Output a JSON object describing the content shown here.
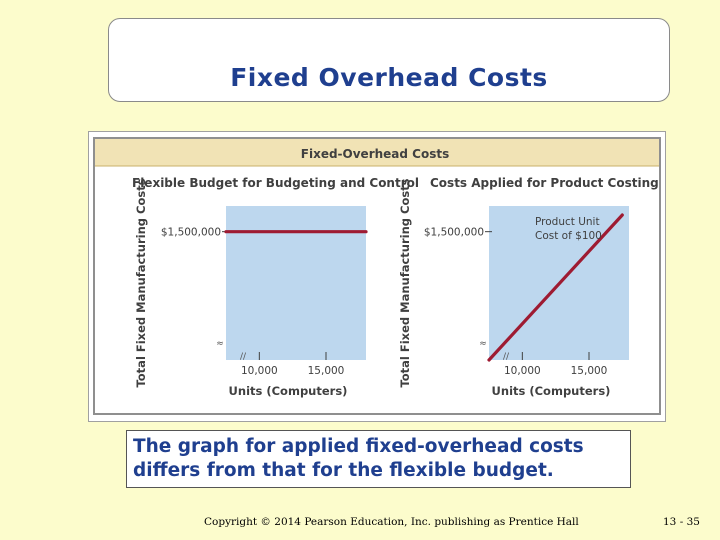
{
  "slide": {
    "title": "Fixed Overhead Costs",
    "caption_line1": "The graph for applied fixed-overhead costs",
    "caption_line2": "differs from that for the flexible budget.",
    "copyright": "Copyright © 2014 Pearson Education, Inc. publishing as Prentice Hall",
    "page_number": "13 - 35"
  },
  "colors": {
    "background": "#fcfccc",
    "title_text": "#1f3f8f",
    "figure_header_bar": "#f1e3b5",
    "plot_fill": "#bdd7ee",
    "series_line": "#9e1b32",
    "label_text": "#404040"
  },
  "figure": {
    "header": "Fixed-Overhead Costs"
  },
  "chart_data": [
    {
      "type": "line",
      "title": "Flexible Budget for Budgeting and Control",
      "xlabel": "Units (Computers)",
      "ylabel": "Total Fixed Manufacturing Costs",
      "x_ticks": [
        "10,000",
        "15,000"
      ],
      "x_tick_values": [
        10000,
        15000
      ],
      "y_ticks": [
        "$1,500,000"
      ],
      "y_tick_values": [
        1500000
      ],
      "xlim": [
        7500,
        18000
      ],
      "ylim": [
        1300000,
        1540000
      ],
      "axis_break_x": true,
      "axis_break_y": true,
      "series": [
        {
          "x": [
            7500,
            18000
          ],
          "y": [
            1500000,
            1500000
          ]
        }
      ]
    },
    {
      "type": "line",
      "title": "Costs Applied for Product Costing",
      "xlabel": "Units (Computers)",
      "ylabel": "Total Fixed Manufacturing Costs",
      "x_ticks": [
        "10,000",
        "15,000"
      ],
      "x_tick_values": [
        10000,
        15000
      ],
      "y_ticks": [
        "$1,500,000"
      ],
      "y_tick_values": [
        1500000
      ],
      "xlim": [
        7500,
        18000
      ],
      "ylim": [
        1300000,
        1540000
      ],
      "axis_break_x": true,
      "axis_break_y": true,
      "annotation": [
        "Product Unit",
        "Cost of $100"
      ],
      "series": [
        {
          "x": [
            7500,
            17500
          ],
          "y": [
            1300000,
            1526000
          ]
        }
      ]
    }
  ]
}
